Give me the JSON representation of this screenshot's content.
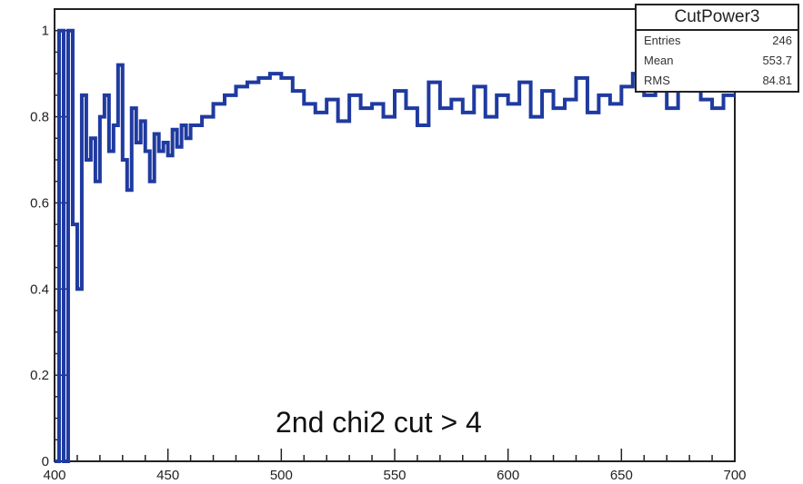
{
  "chart_data": {
    "type": "histogram",
    "xlim": [
      400,
      700
    ],
    "ylim": [
      0,
      1.05
    ],
    "x_ticks": [
      "400",
      "450",
      "500",
      "550",
      "600",
      "650",
      "700"
    ],
    "y_ticks": [
      "0",
      "0.2",
      "0.4",
      "0.6",
      "0.8",
      "1"
    ],
    "x_tick_values": [
      400,
      450,
      500,
      550,
      600,
      650,
      700
    ],
    "y_tick_values": [
      0,
      0.2,
      0.4,
      0.6,
      0.8,
      1.0
    ],
    "line_color": "#1f3aa0",
    "x": [
      400,
      402,
      404,
      406,
      408,
      410,
      412,
      414,
      416,
      418,
      420,
      422,
      424,
      426,
      428,
      430,
      432,
      434,
      436,
      438,
      440,
      442,
      444,
      446,
      448,
      450,
      452,
      454,
      456,
      458,
      460,
      465,
      470,
      475,
      480,
      485,
      490,
      495,
      500,
      505,
      510,
      515,
      520,
      525,
      530,
      535,
      540,
      545,
      550,
      555,
      560,
      565,
      570,
      575,
      580,
      585,
      590,
      595,
      600,
      605,
      610,
      615,
      620,
      625,
      630,
      635,
      640,
      645,
      650,
      655,
      660,
      665,
      670,
      675,
      680,
      685,
      690,
      695
    ],
    "values": [
      0,
      1.0,
      0.0,
      1.0,
      0.55,
      0.4,
      0.85,
      0.7,
      0.75,
      0.65,
      0.8,
      0.85,
      0.72,
      0.78,
      0.92,
      0.7,
      0.63,
      0.82,
      0.74,
      0.79,
      0.72,
      0.65,
      0.76,
      0.72,
      0.74,
      0.71,
      0.77,
      0.73,
      0.78,
      0.75,
      0.78,
      0.8,
      0.83,
      0.85,
      0.87,
      0.88,
      0.89,
      0.9,
      0.89,
      0.86,
      0.83,
      0.81,
      0.84,
      0.79,
      0.85,
      0.82,
      0.83,
      0.8,
      0.86,
      0.82,
      0.78,
      0.88,
      0.82,
      0.84,
      0.81,
      0.87,
      0.8,
      0.85,
      0.83,
      0.88,
      0.8,
      0.86,
      0.82,
      0.84,
      0.89,
      0.81,
      0.85,
      0.83,
      0.87,
      0.9,
      0.85,
      0.88,
      0.82,
      0.9,
      0.86,
      0.84,
      0.82,
      0.85
    ],
    "stats": {
      "title": "CutPower3",
      "rows": [
        {
          "label": "Entries",
          "value": "246"
        },
        {
          "label": "Mean",
          "value": "553.7"
        },
        {
          "label": "RMS",
          "value": "84.81"
        }
      ]
    },
    "annotation": "2nd chi2 cut > 4"
  }
}
